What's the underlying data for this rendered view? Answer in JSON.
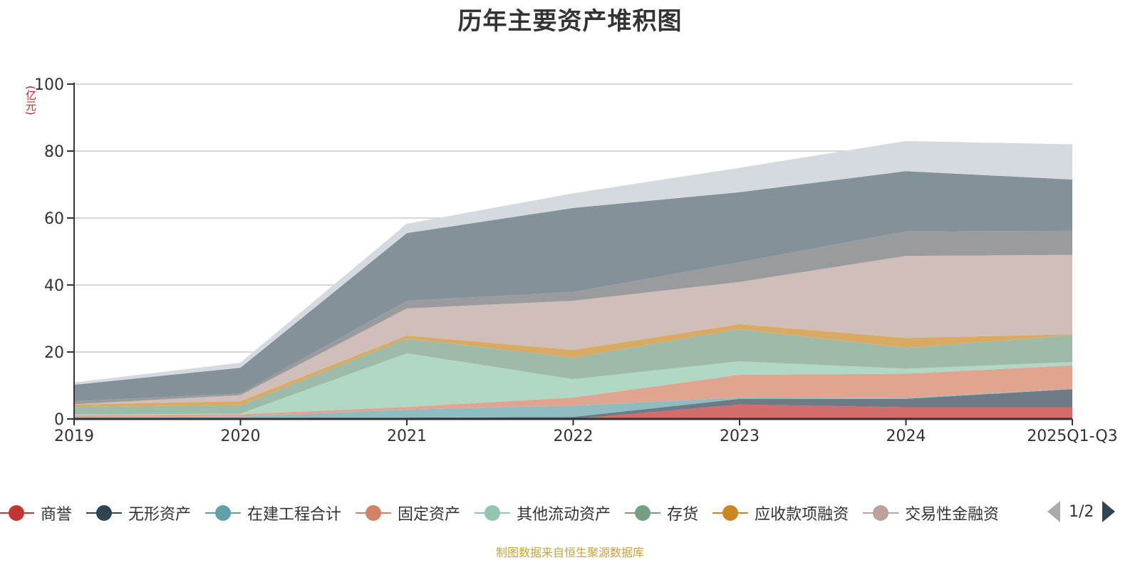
{
  "title": "历年主要资产堆积图",
  "unit_label": "(亿元)",
  "source_note": "制图数据来自恒生聚源数据库",
  "legend_pager": {
    "text": "1/2",
    "prev_label": "previous page",
    "next_label": "next page"
  },
  "chart_data": {
    "type": "area",
    "stacked": true,
    "title": "历年主要资产堆积图",
    "xlabel": "",
    "ylabel": "(亿元)",
    "ylim": [
      0,
      100
    ],
    "yticks": [
      0,
      20,
      40,
      60,
      80,
      100
    ],
    "grid": true,
    "legend_position": "bottom",
    "categories": [
      "2019",
      "2020",
      "2021",
      "2022",
      "2023",
      "2024",
      "2025Q1-Q3"
    ],
    "series": [
      {
        "name": "商誉",
        "legend_color": "#c23531",
        "fill": "#d36c6b",
        "values": [
          0,
          0,
          0,
          0,
          4.3,
          3.5,
          3.5
        ]
      },
      {
        "name": "无形资产",
        "legend_color": "#2f4554",
        "fill": "#6d7b86",
        "values": [
          0.3,
          0.35,
          0.4,
          0.6,
          1.7,
          2.5,
          5.4
        ]
      },
      {
        "name": "在建工程合计",
        "legend_color": "#61a0a8",
        "fill": "#8fbcc1",
        "values": [
          0.2,
          0.35,
          2.4,
          3.4,
          0.4,
          0.3,
          0.1
        ]
      },
      {
        "name": "固定资产",
        "legend_color": "#d48265",
        "fill": "#e0a591",
        "values": [
          0.6,
          0.7,
          0.8,
          2.4,
          6.8,
          7.2,
          7.0
        ]
      },
      {
        "name": "其他流动资产",
        "legend_color": "#91c7ae",
        "fill": "#b1d7c5",
        "values": [
          0.2,
          0.2,
          16.0,
          5.5,
          4.0,
          1.5,
          1.0
        ]
      },
      {
        "name": "存货",
        "legend_color": "#749f83",
        "fill": "#9dbba8",
        "values": [
          2.3,
          2.5,
          4.4,
          6.4,
          9.6,
          6.2,
          8.0
        ]
      },
      {
        "name": "应收款项融资",
        "legend_color": "#ca8622",
        "fill": "#d9aa64",
        "values": [
          0.7,
          1.2,
          0.9,
          2.3,
          1.5,
          3.0,
          0.3
        ]
      },
      {
        "name": "交易性金融资产",
        "legend_color": "#bda29a",
        "fill": "#d0beb8",
        "values": [
          0.1,
          1.8,
          8.1,
          14.7,
          12.6,
          24.5,
          23.7
        ]
      },
      {
        "name": "",
        "legend_color": "#6e7074",
        "fill": "#9a9b9f",
        "values": [
          0.9,
          0.5,
          2.3,
          2.6,
          5.9,
          7.3,
          7.2
        ]
      },
      {
        "name": "",
        "legend_color": "#546570",
        "fill": "#849198",
        "values": [
          4.9,
          7.7,
          20.2,
          25.1,
          20.9,
          18.0,
          15.3
        ]
      },
      {
        "name": "",
        "legend_color": "#c4ccd3",
        "fill": "#d5dae0",
        "values": [
          0.7,
          1.5,
          2.8,
          4.4,
          7.3,
          9.0,
          10.5
        ]
      }
    ],
    "legend_visible_count": 8
  }
}
